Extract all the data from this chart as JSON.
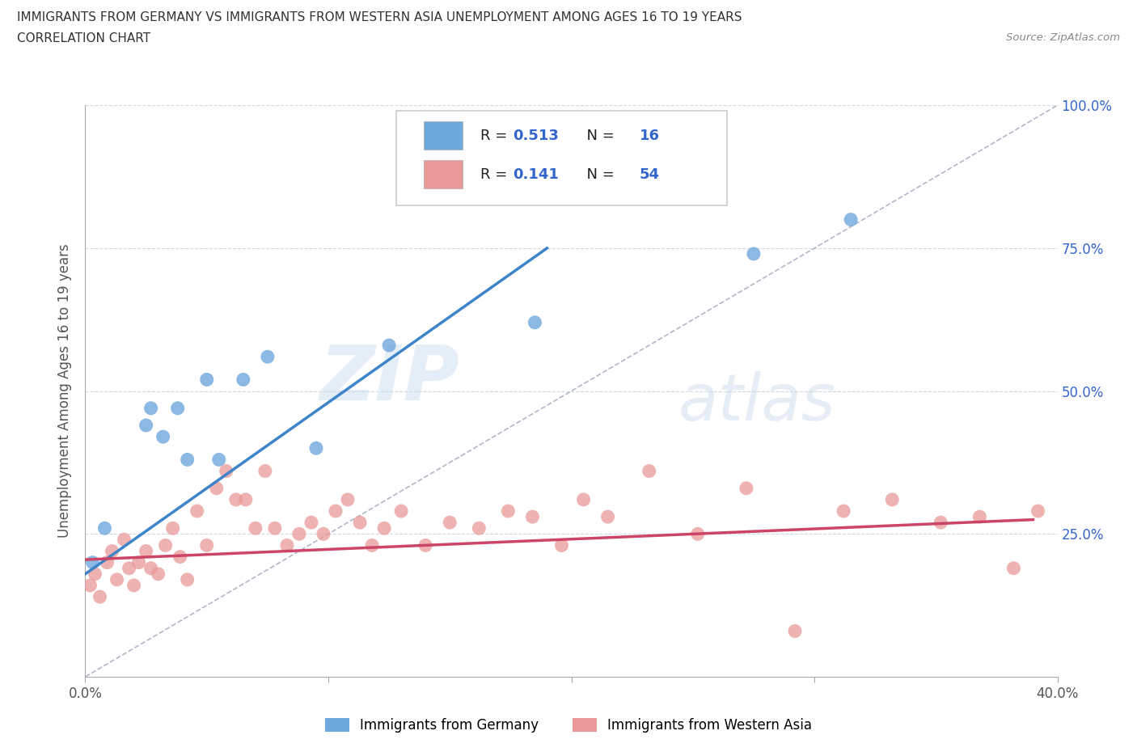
{
  "title_line1": "IMMIGRANTS FROM GERMANY VS IMMIGRANTS FROM WESTERN ASIA UNEMPLOYMENT AMONG AGES 16 TO 19 YEARS",
  "title_line2": "CORRELATION CHART",
  "source_text": "Source: ZipAtlas.com",
  "ylabel": "Unemployment Among Ages 16 to 19 years",
  "xlim": [
    0.0,
    0.4
  ],
  "ylim": [
    0.0,
    1.0
  ],
  "germany_color": "#6fa8dc",
  "western_asia_color": "#ea9999",
  "germany_line_color": "#3d85c8",
  "western_asia_line_color": "#cc4466",
  "diagonal_line_color": "#b0b8c8",
  "R_germany": 0.513,
  "N_germany": 16,
  "R_western_asia": 0.141,
  "N_western_asia": 54,
  "watermark_zip": "ZIP",
  "watermark_atlas": "atlas",
  "germany_scatter_x": [
    0.003,
    0.008,
    0.025,
    0.027,
    0.032,
    0.038,
    0.042,
    0.05,
    0.055,
    0.065,
    0.075,
    0.095,
    0.125,
    0.185,
    0.275,
    0.315
  ],
  "germany_scatter_y": [
    0.2,
    0.26,
    0.44,
    0.47,
    0.42,
    0.47,
    0.38,
    0.52,
    0.38,
    0.52,
    0.56,
    0.4,
    0.58,
    0.62,
    0.74,
    0.8
  ],
  "western_asia_scatter_x": [
    0.002,
    0.004,
    0.006,
    0.009,
    0.011,
    0.013,
    0.016,
    0.018,
    0.02,
    0.022,
    0.025,
    0.027,
    0.03,
    0.033,
    0.036,
    0.039,
    0.042,
    0.046,
    0.05,
    0.054,
    0.058,
    0.062,
    0.066,
    0.07,
    0.074,
    0.078,
    0.083,
    0.088,
    0.093,
    0.098,
    0.103,
    0.108,
    0.113,
    0.118,
    0.123,
    0.13,
    0.14,
    0.15,
    0.162,
    0.174,
    0.184,
    0.196,
    0.205,
    0.215,
    0.232,
    0.252,
    0.272,
    0.292,
    0.312,
    0.332,
    0.352,
    0.368,
    0.382,
    0.392
  ],
  "western_asia_scatter_y": [
    0.16,
    0.18,
    0.14,
    0.2,
    0.22,
    0.17,
    0.24,
    0.19,
    0.16,
    0.2,
    0.22,
    0.19,
    0.18,
    0.23,
    0.26,
    0.21,
    0.17,
    0.29,
    0.23,
    0.33,
    0.36,
    0.31,
    0.31,
    0.26,
    0.36,
    0.26,
    0.23,
    0.25,
    0.27,
    0.25,
    0.29,
    0.31,
    0.27,
    0.23,
    0.26,
    0.29,
    0.23,
    0.27,
    0.26,
    0.29,
    0.28,
    0.23,
    0.31,
    0.28,
    0.36,
    0.25,
    0.33,
    0.08,
    0.29,
    0.31,
    0.27,
    0.28,
    0.19,
    0.29
  ],
  "germany_line_x0": 0.0,
  "germany_line_y0": 0.18,
  "germany_line_x1": 0.19,
  "germany_line_y1": 0.75,
  "western_asia_line_x0": 0.0,
  "western_asia_line_y0": 0.205,
  "western_asia_line_x1": 0.39,
  "western_asia_line_y1": 0.275
}
